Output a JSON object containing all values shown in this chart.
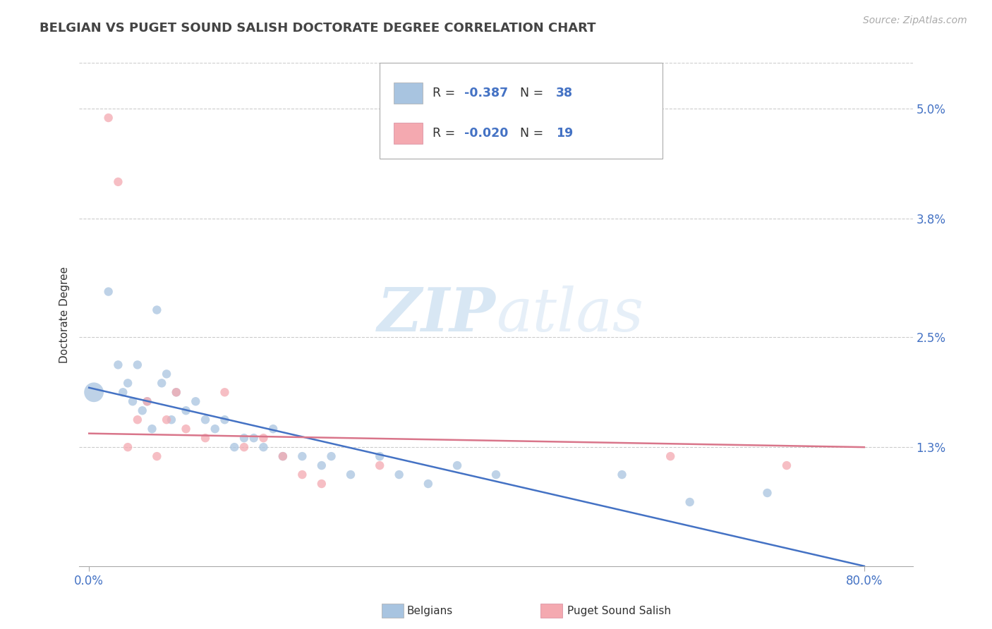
{
  "title": "BELGIAN VS PUGET SOUND SALISH DOCTORATE DEGREE CORRELATION CHART",
  "source_text": "Source: ZipAtlas.com",
  "ylabel": "Doctorate Degree",
  "ylim": [
    0.0,
    0.055
  ],
  "xlim": [
    -0.01,
    0.85
  ],
  "ytick_vals": [
    0.0,
    0.013,
    0.025,
    0.038,
    0.05
  ],
  "right_ytick_vals": [
    0.013,
    0.025,
    0.038,
    0.05
  ],
  "right_ytick_labels": [
    "1.3%",
    "2.5%",
    "3.8%",
    "5.0%"
  ],
  "xtick_vals": [
    0.0,
    0.8
  ],
  "xtick_labels": [
    "0.0%",
    "80.0%"
  ],
  "legend_blue_r": "-0.387",
  "legend_blue_n": "38",
  "legend_pink_r": "-0.020",
  "legend_pink_n": "19",
  "watermark_zip": "ZIP",
  "watermark_atlas": "atlas",
  "belgians_color": "#a8c4e0",
  "puget_color": "#f4a9b0",
  "belgians_line_color": "#4472c4",
  "puget_line_color": "#d9758a",
  "belgians_x": [
    0.005,
    0.02,
    0.03,
    0.035,
    0.04,
    0.045,
    0.05,
    0.055,
    0.06,
    0.065,
    0.07,
    0.075,
    0.08,
    0.085,
    0.09,
    0.1,
    0.11,
    0.12,
    0.13,
    0.14,
    0.15,
    0.16,
    0.17,
    0.18,
    0.19,
    0.2,
    0.22,
    0.24,
    0.25,
    0.27,
    0.3,
    0.32,
    0.35,
    0.38,
    0.42,
    0.55,
    0.62,
    0.7
  ],
  "belgians_y": [
    0.019,
    0.03,
    0.022,
    0.019,
    0.02,
    0.018,
    0.022,
    0.017,
    0.018,
    0.015,
    0.028,
    0.02,
    0.021,
    0.016,
    0.019,
    0.017,
    0.018,
    0.016,
    0.015,
    0.016,
    0.013,
    0.014,
    0.014,
    0.013,
    0.015,
    0.012,
    0.012,
    0.011,
    0.012,
    0.01,
    0.012,
    0.01,
    0.009,
    0.011,
    0.01,
    0.01,
    0.007,
    0.008
  ],
  "belgians_size": [
    400,
    80,
    80,
    80,
    80,
    80,
    80,
    80,
    80,
    80,
    80,
    80,
    80,
    80,
    80,
    80,
    80,
    80,
    80,
    80,
    80,
    80,
    80,
    80,
    80,
    80,
    80,
    80,
    80,
    80,
    80,
    80,
    80,
    80,
    80,
    80,
    80,
    80
  ],
  "puget_x": [
    0.02,
    0.03,
    0.04,
    0.05,
    0.06,
    0.07,
    0.08,
    0.09,
    0.1,
    0.12,
    0.14,
    0.16,
    0.18,
    0.2,
    0.22,
    0.24,
    0.3,
    0.6,
    0.72
  ],
  "puget_y": [
    0.049,
    0.042,
    0.013,
    0.016,
    0.018,
    0.012,
    0.016,
    0.019,
    0.015,
    0.014,
    0.019,
    0.013,
    0.014,
    0.012,
    0.01,
    0.009,
    0.011,
    0.012,
    0.011
  ],
  "puget_size": [
    80,
    80,
    80,
    80,
    80,
    80,
    80,
    80,
    80,
    80,
    80,
    80,
    80,
    80,
    80,
    80,
    80,
    80,
    80
  ],
  "belgian_line_x0": 0.0,
  "belgian_line_y0": 0.0195,
  "belgian_line_x1": 0.8,
  "belgian_line_y1": 0.0,
  "puget_line_x0": 0.0,
  "puget_line_y0": 0.0145,
  "puget_line_x1": 0.8,
  "puget_line_y1": 0.013,
  "grid_color": "#cccccc",
  "background_color": "#ffffff",
  "title_color": "#444444",
  "tick_label_color": "#4472c4",
  "legend_text_color": "#333333",
  "legend_value_color": "#4472c4"
}
